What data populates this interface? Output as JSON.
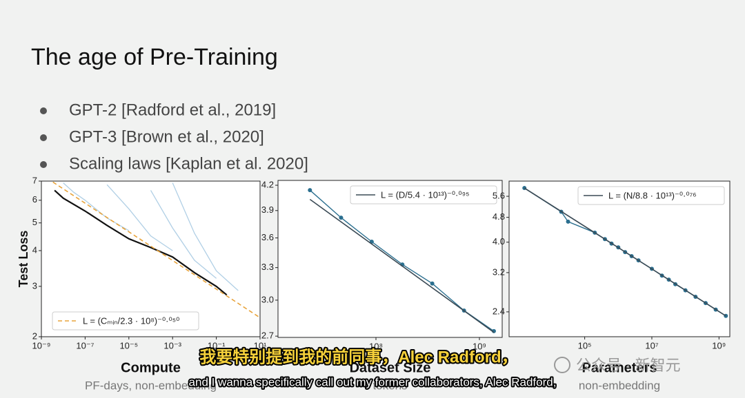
{
  "slide": {
    "title": "The age of Pre-Training",
    "bullets": [
      "GPT-2 [Radford et al., 2019]",
      "GPT-3 [Brown et al., 2020]",
      "Scaling laws [Kaplan et al. 2020]"
    ]
  },
  "chart_data": [
    {
      "type": "line",
      "xlabel": "Compute",
      "xlabel_note": "PF-days, non-embedding",
      "ylabel": "Test Loss",
      "xscale": "log",
      "yscale": "log",
      "legend": "lower left",
      "xlim": [
        1e-09,
        10
      ],
      "ylim": [
        2,
        7
      ],
      "xticks": [
        {
          "value": 1e-09,
          "label": "10⁻⁹"
        },
        {
          "value": 1e-07,
          "label": "10⁻⁷"
        },
        {
          "value": 1e-05,
          "label": "10⁻⁵"
        },
        {
          "value": 0.001,
          "label": "10⁻³"
        },
        {
          "value": 0.1,
          "label": "10⁻¹"
        },
        {
          "value": 10,
          "label": "10¹"
        }
      ],
      "yticks": [
        2,
        3,
        4,
        5,
        6,
        7
      ],
      "series": [
        {
          "color": "#9cc3de",
          "x": [
            1e-08,
            3e-08,
            1e-07,
            1e-06,
            1e-05
          ],
          "values": [
            6.9,
            6.4,
            6.0,
            5.2,
            4.7
          ]
        },
        {
          "color": "#9cc3de",
          "x": [
            1e-06,
            1e-05,
            0.0001,
            0.001
          ],
          "values": [
            6.8,
            5.6,
            4.5,
            4.0
          ]
        },
        {
          "color": "#9cc3de",
          "x": [
            0.0001,
            0.001,
            0.01,
            0.1
          ],
          "values": [
            6.5,
            4.8,
            3.7,
            3.2
          ]
        },
        {
          "color": "#9cc3de",
          "x": [
            0.001,
            0.01,
            0.1,
            1
          ],
          "values": [
            6.9,
            4.6,
            3.4,
            2.9
          ]
        },
        {
          "color": "#111111",
          "x": [
            4e-09,
            1e-08,
            1e-07,
            1e-06,
            1e-05,
            0.0001,
            0.001,
            0.01,
            0.1,
            0.3
          ],
          "values": [
            6.5,
            6.1,
            5.5,
            4.9,
            4.4,
            4.1,
            3.8,
            3.35,
            3.0,
            2.8
          ]
        },
        {
          "name": "L = (Cₘᵢₙ/2.3 · 10⁸)⁻⁰·⁰⁵⁰",
          "color": "#e8a33a",
          "dashed": true,
          "x": [
            1e-09,
            10
          ],
          "values": [
            7.38,
            2.33
          ]
        }
      ]
    },
    {
      "type": "scatter",
      "xlabel": "Dataset Size",
      "xlabel_note": "tokens",
      "xscale": "log",
      "yscale": "log",
      "legend": "upper right",
      "xlim": [
        11300000,
        1660000000
      ],
      "ylim": [
        2.69,
        4.26
      ],
      "xticks": [
        {
          "value": 100000000,
          "label": "10⁸"
        },
        {
          "value": 1000000000,
          "label": "10⁹"
        }
      ],
      "yticks": [
        2.7,
        {
          "value": 3,
          "label": "3.0"
        },
        3.3,
        3.6,
        3.9,
        4.2
      ],
      "series": [
        {
          "color": "#2b6f8f",
          "marker": true,
          "x": [
            23000000,
            46000000,
            91000000,
            180000000,
            350000000,
            710000000,
            1380000000
          ],
          "values": [
            4.14,
            3.82,
            3.56,
            3.33,
            3.15,
            2.91,
            2.74
          ]
        },
        {
          "name": "L = (D/5.4 · 10¹³)⁻⁰·⁰⁹⁵",
          "color": "#3a4a55",
          "x": [
            23000000,
            1380000000
          ],
          "values": [
            4.03,
            2.73
          ]
        }
      ]
    },
    {
      "type": "scatter",
      "xlabel": "Parameters",
      "xlabel_note": "non-embedding",
      "xscale": "log",
      "yscale": "log",
      "legend": "upper right",
      "xlim": [
        560,
        2100000000
      ],
      "ylim": [
        2.0,
        6.26
      ],
      "xticks": [
        {
          "value": 100000,
          "label": "10⁵"
        },
        {
          "value": 10000000,
          "label": "10⁷"
        },
        {
          "value": 1000000000,
          "label": "10⁹"
        }
      ],
      "yticks": [
        2.4,
        3.2,
        {
          "value": 4,
          "label": "4.0"
        },
        4.8,
        5.6
      ],
      "series": [
        {
          "color": "#2b6f8f",
          "marker": true,
          "x": [
            1600,
            20000,
            32000,
            200000,
            400000,
            630000,
            1000000,
            1600000,
            2500000,
            4000000,
            10000000,
            20000000,
            32000000,
            50000000,
            100000000,
            200000000,
            400000000,
            800000000,
            1600000000
          ],
          "values": [
            5.95,
            5.0,
            4.65,
            4.29,
            4.09,
            3.96,
            3.85,
            3.72,
            3.61,
            3.5,
            3.29,
            3.13,
            3.04,
            2.94,
            2.81,
            2.68,
            2.56,
            2.44,
            2.33
          ]
        },
        {
          "name": "L = (N/8.8 · 10¹³)⁻⁰·⁰⁷⁶",
          "color": "#3a4a55",
          "x": [
            1600,
            1600000000
          ],
          "values": [
            5.95,
            2.33
          ]
        }
      ]
    }
  ],
  "subtitles": {
    "zh": "我要特别提到我的前同事，Alec Radford，",
    "en": "and I wanna specifically call out my former collaborators, Alec Radford,"
  },
  "watermark": "公众号 · 新智元"
}
